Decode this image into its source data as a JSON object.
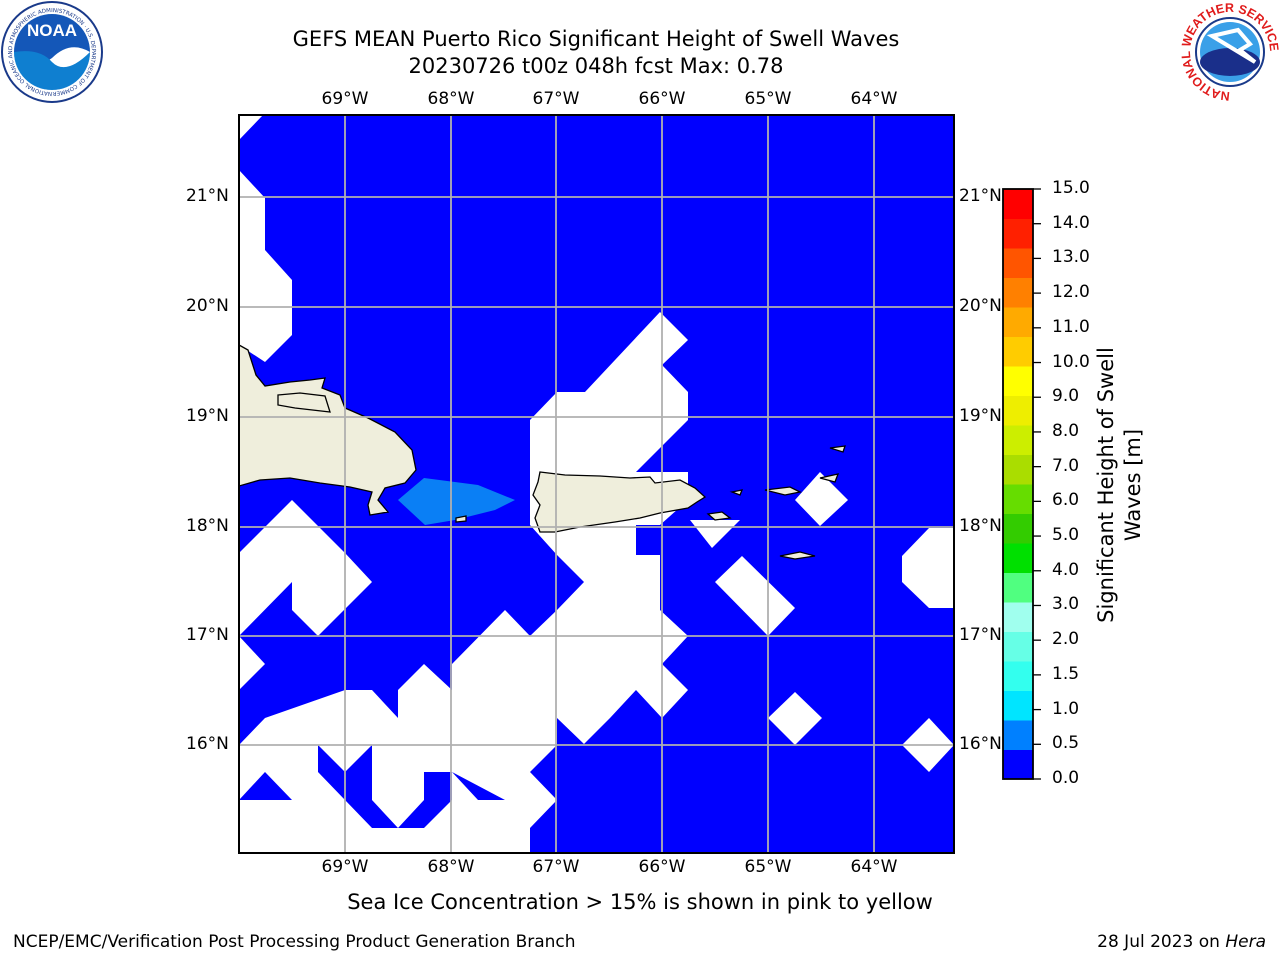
{
  "header": {
    "title_line1": "GEFS MEAN Puerto Rico Significant Height of Swell Waves",
    "title_line2": "20230726 t00z 048h fcst   Max: 0.78"
  },
  "map": {
    "lon_ticks": [
      "69°W",
      "68°W",
      "67°W",
      "66°W",
      "65°W",
      "64°W"
    ],
    "lat_ticks": [
      "21°N",
      "20°N",
      "19°N",
      "18°N",
      "17°N",
      "16°N"
    ],
    "colors": {
      "land": "#efeedc",
      "swell_low": "#0000ff",
      "swell_mid": "#0a7ff5",
      "no_data": "#ffffff",
      "grid": "#b0b0b0"
    }
  },
  "colorbar": {
    "label_line1": "Significant Height of Swell",
    "label_line2": "Waves [m]",
    "ticks": [
      "15.0",
      "14.0",
      "13.0",
      "12.0",
      "11.0",
      "10.0",
      "9.0",
      "8.0",
      "7.0",
      "6.0",
      "5.0",
      "4.0",
      "3.0",
      "2.0",
      "1.5",
      "1.0",
      "0.5",
      "0.0"
    ],
    "colors": [
      "#0000ff",
      "#0080ff",
      "#00e5ff",
      "#33ffee",
      "#66ffe6",
      "#a0ffee",
      "#50ff80",
      "#00e000",
      "#33cc00",
      "#66dd00",
      "#aadd00",
      "#ccee00",
      "#eeee00",
      "#ffff00",
      "#ffcc00",
      "#ffaa00",
      "#ff8000",
      "#ff5500",
      "#ff2000",
      "#ff0000"
    ]
  },
  "logos": {
    "noaa_text": "NOAA",
    "noaa_ring": "NATIONAL OCEANIC AND ATMOSPHERIC ADMINISTRATION · U.S. DEPARTMENT OF COMMERCE",
    "nws_ring": "NATIONAL WEATHER SERVICE"
  },
  "footer": {
    "note": "Sea Ice Concentration > 15% is shown in pink to yellow",
    "left": "NCEP/EMC/Verification Post Processing Product Generation Branch",
    "right_date": "28 Jul 2023 on",
    "right_host": "Hera"
  }
}
